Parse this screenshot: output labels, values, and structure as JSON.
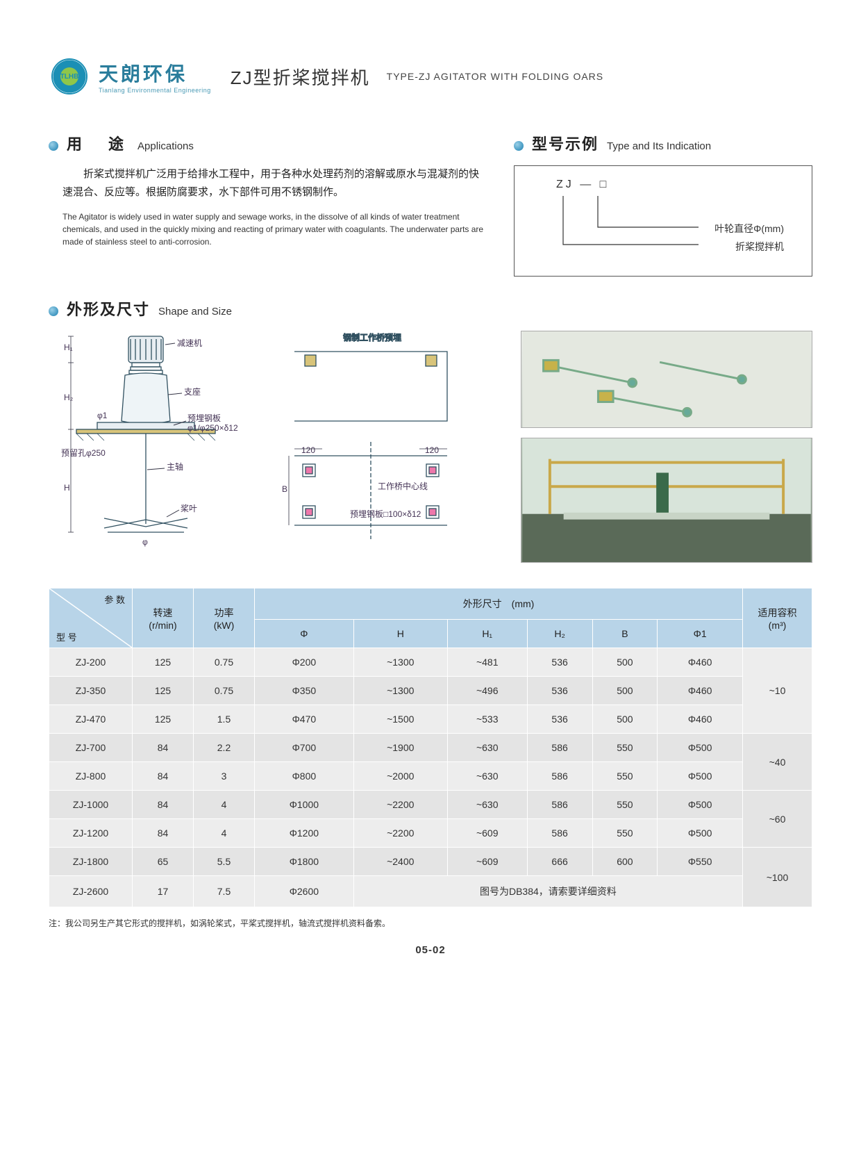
{
  "brand": {
    "logo_text": "TLHB",
    "cn": "天朗环保",
    "en": "Tianlang Environmental Engineering"
  },
  "title": {
    "cn": "ZJ型折桨搅拌机",
    "en": "TYPE-ZJ AGITATOR WITH FOLDING OARS"
  },
  "sections": {
    "applications": {
      "cn": "用　途",
      "en": "Applications"
    },
    "type": {
      "cn": "型号示例",
      "en": "Type and Its Indication"
    },
    "shape": {
      "cn": "外形及尺寸",
      "en": "Shape and Size"
    }
  },
  "app_para_cn": "折桨式搅拌机广泛用于给排水工程中，用于各种水处理药剂的溶解或原水与混凝剂的快速混合、反应等。根据防腐要求，水下部件可用不锈钢制作。",
  "app_para_en": "The Agitator is widely used in water supply and sewage works, in the dissolve of all kinds of water treatment chemicals, and used in the quickly mixing and reacting of primary water with coagulants. The underwater parts are made of stainless steel to anti-corrosion.",
  "type_expr": "ZJ — □",
  "type_label1": "叶轮直径Φ(mm)",
  "type_label2": "折桨搅拌机",
  "diagram_labels": {
    "reducer": "减速机",
    "support": "支座",
    "embed_plate": "预埋钢板",
    "plate_spec": "φ1/φ250×δ12",
    "reserve_hole": "预留孔φ250",
    "main_shaft": "主轴",
    "blade": "桨叶",
    "bridge": "钢制工作桥预埋",
    "centerline": "工作桥中心线",
    "plate2": "预埋钢板□100×δ12",
    "d120a": "120",
    "d120b": "120",
    "dim_H": "H",
    "dim_H1": "H₁",
    "dim_H2": "H₂",
    "dim_B": "B",
    "dim_phi": "φ",
    "dim_phi1": "φ1"
  },
  "table": {
    "hdr_param": "参 数",
    "hdr_model": "型 号",
    "hdr_speed": "转速",
    "hdr_speed_unit": "(r/min)",
    "hdr_power": "功率",
    "hdr_power_unit": "(kW)",
    "hdr_dims": "外形尺寸　(mm)",
    "hdr_capacity": "适用容积",
    "hdr_capacity_unit": "(m³)",
    "dim_cols": [
      "Φ",
      "H",
      "H₁",
      "H₂",
      "B",
      "Φ1"
    ],
    "rows": [
      {
        "model": "ZJ-200",
        "speed": "125",
        "power": "0.75",
        "d": [
          "Φ200",
          "~1300",
          "~481",
          "536",
          "500",
          "Φ460"
        ],
        "cap": "~10"
      },
      {
        "model": "ZJ-350",
        "speed": "125",
        "power": "0.75",
        "d": [
          "Φ350",
          "~1300",
          "~496",
          "536",
          "500",
          "Φ460"
        ],
        "cap": "~10"
      },
      {
        "model": "ZJ-470",
        "speed": "125",
        "power": "1.5",
        "d": [
          "Φ470",
          "~1500",
          "~533",
          "536",
          "500",
          "Φ460"
        ],
        "cap": "~10"
      },
      {
        "model": "ZJ-700",
        "speed": "84",
        "power": "2.2",
        "d": [
          "Φ700",
          "~1900",
          "~630",
          "586",
          "550",
          "Φ500"
        ],
        "cap": "~40"
      },
      {
        "model": "ZJ-800",
        "speed": "84",
        "power": "3",
        "d": [
          "Φ800",
          "~2000",
          "~630",
          "586",
          "550",
          "Φ500"
        ],
        "cap": "~40"
      },
      {
        "model": "ZJ-1000",
        "speed": "84",
        "power": "4",
        "d": [
          "Φ1000",
          "~2200",
          "~630",
          "586",
          "550",
          "Φ500"
        ],
        "cap": "~60"
      },
      {
        "model": "ZJ-1200",
        "speed": "84",
        "power": "4",
        "d": [
          "Φ1200",
          "~2200",
          "~609",
          "586",
          "550",
          "Φ500"
        ],
        "cap": "~60"
      },
      {
        "model": "ZJ-1800",
        "speed": "65",
        "power": "5.5",
        "d": [
          "Φ1800",
          "~2400",
          "~609",
          "666",
          "600",
          "Φ550"
        ],
        "cap": "~100"
      },
      {
        "model": "ZJ-2600",
        "speed": "17",
        "power": "7.5",
        "d": [
          "Φ2600"
        ],
        "note": "图号为DB384，请索要详细资料",
        "cap": "~100"
      }
    ],
    "cap_spans": [
      3,
      2,
      2,
      2
    ]
  },
  "footnote": "注：我公司另生产其它形式的搅拌机，如涡轮桨式，平桨式搅拌机，轴流式搅拌机资料备索。",
  "page_num": "05-02",
  "colors": {
    "header_bg": "#b8d4e8",
    "row_bg1": "#ededed",
    "row_bg2": "#e4e4e4",
    "brand": "#2a7d9c",
    "diagram_stroke": "#305060"
  }
}
